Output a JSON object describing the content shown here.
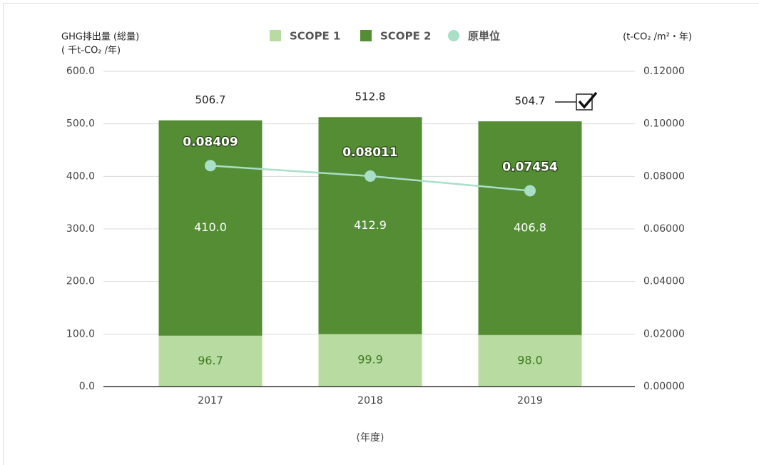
{
  "chart_data": {
    "type": "stacked_bar_line",
    "y_label": [
      "GHG排出量 (総量)",
      "( 千t-CO₂ /年)"
    ],
    "y2_label": "(t-CO₂ /m²・年)",
    "x_label": "(年度)",
    "categories": [
      "2017",
      "2018",
      "2019"
    ],
    "series": [
      {
        "name": "SCOPE 1",
        "type": "bar",
        "color": "#b7dba0",
        "label_color": "#3f7a22",
        "values": [
          96.7,
          99.9,
          98.0
        ],
        "value_labels": [
          "96.7",
          "99.9",
          "98.0"
        ]
      },
      {
        "name": "SCOPE 2",
        "type": "bar",
        "color": "#548d33",
        "label_color": "#ffffff",
        "values": [
          410.0,
          412.9,
          406.8
        ],
        "value_labels": [
          "410.0",
          "412.9",
          "406.8"
        ]
      },
      {
        "name": "原単位",
        "type": "line",
        "axis": "y2",
        "color": "#a9dec7",
        "values": [
          0.08409,
          0.08011,
          0.07454
        ]
      }
    ],
    "totals": [
      506.7,
      512.8,
      504.7
    ],
    "ylim": [
      0,
      600
    ],
    "yticks": [
      {
        "value": 0,
        "label": "0.0"
      },
      {
        "value": 100,
        "label": "100.0"
      },
      {
        "value": 200,
        "label": "200.0"
      },
      {
        "value": 300,
        "label": "300.0"
      },
      {
        "value": 400,
        "label": "400.0"
      },
      {
        "value": 500,
        "label": "500.0"
      },
      {
        "value": 600,
        "label": "600.0"
      }
    ],
    "y2lim": [
      0,
      0.12
    ],
    "y2ticks": [
      {
        "value": 0,
        "label": "0.00000"
      },
      {
        "value": 0.02,
        "label": "0.02000"
      },
      {
        "value": 0.04,
        "label": "0.04000"
      },
      {
        "value": 0.06,
        "label": "0.06000"
      },
      {
        "value": 0.08,
        "label": "0.08000"
      },
      {
        "value": 0.1,
        "label": "0.10000"
      },
      {
        "value": 0.12,
        "label": "0.12000"
      }
    ],
    "grid": true
  }
}
